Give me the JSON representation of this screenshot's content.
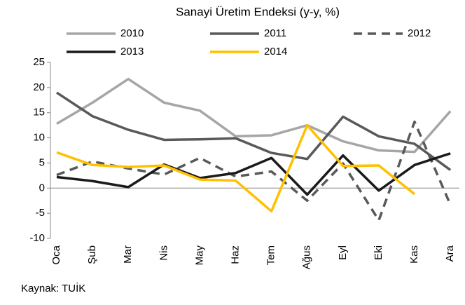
{
  "chart_data": {
    "type": "line",
    "title": "Sanayi Üretim Endeksi (y-y, %)",
    "categories": [
      "Oca",
      "Şub",
      "Mar",
      "Nis",
      "May",
      "Haz",
      "Tem",
      "Ağus",
      "Eyl",
      "Eki",
      "Kas",
      "Ara"
    ],
    "series": [
      {
        "name": "2010",
        "color": "#a6a6a6",
        "dash": false,
        "values": [
          12.8,
          17,
          21.7,
          17,
          15.4,
          10.3,
          10.5,
          12.5,
          9.3,
          7.5,
          7.2,
          15.3
        ]
      },
      {
        "name": "2011",
        "color": "#595959",
        "dash": false,
        "values": [
          19,
          14.3,
          11.6,
          9.6,
          9.7,
          9.9,
          7,
          5.8,
          14.2,
          10.3,
          8.8,
          3.6
        ]
      },
      {
        "name": "2012",
        "color": "#595959",
        "dash": true,
        "values": [
          2.6,
          5.3,
          3.9,
          2.7,
          6,
          2.3,
          3.3,
          -2.5,
          4.9,
          -6.4,
          13.2,
          -3.3
        ]
      },
      {
        "name": "2013",
        "color": "#1a1a1a",
        "dash": false,
        "values": [
          2.2,
          1.4,
          0.2,
          4.7,
          2,
          3,
          6,
          -1.3,
          6.5,
          -0.5,
          4.6,
          6.9
        ]
      },
      {
        "name": "2014",
        "color": "#ffc000",
        "dash": false,
        "values": [
          7.1,
          4.6,
          4.2,
          4.5,
          1.7,
          1.5,
          -4.6,
          12.5,
          4.4,
          4.5,
          -1.2,
          null
        ]
      }
    ],
    "ylim": [
      -10,
      25
    ],
    "yticks": [
      -10,
      -5,
      0,
      5,
      10,
      15,
      20,
      25
    ],
    "source": "Kaynak: TUİK"
  }
}
